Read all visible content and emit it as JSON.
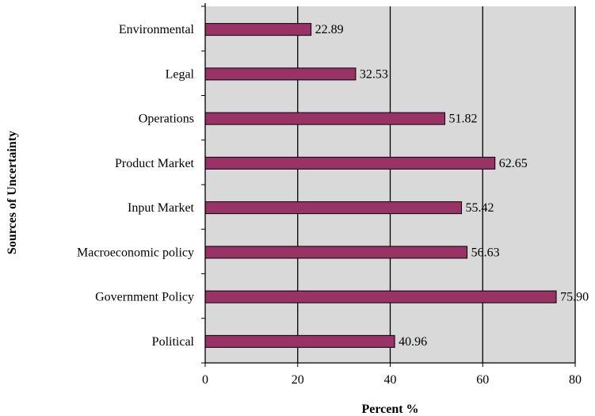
{
  "chart_data": {
    "type": "bar",
    "orientation": "horizontal",
    "title": "",
    "xlabel": "Percent %",
    "ylabel": "Sources of Uncertainty",
    "categories": [
      "Environmental",
      "Legal",
      "Operations",
      "Product Market",
      "Input Market",
      "Macroeconomic policy",
      "Government Policy",
      "Political"
    ],
    "values": [
      22.89,
      32.53,
      51.82,
      62.65,
      55.42,
      56.63,
      75.9,
      40.96
    ],
    "value_labels": [
      "22.89",
      "32.53",
      "51.82",
      "62.65",
      "55.42",
      "56.63",
      "75.90",
      "40.96"
    ],
    "xlim": [
      0,
      80
    ],
    "xticks": [
      "0",
      "20",
      "40",
      "60",
      "80"
    ],
    "grid": true,
    "legend": "none",
    "colors": {
      "bar": "#993366",
      "plot_background": "#d9d9d9",
      "gridline": "#000000"
    }
  }
}
